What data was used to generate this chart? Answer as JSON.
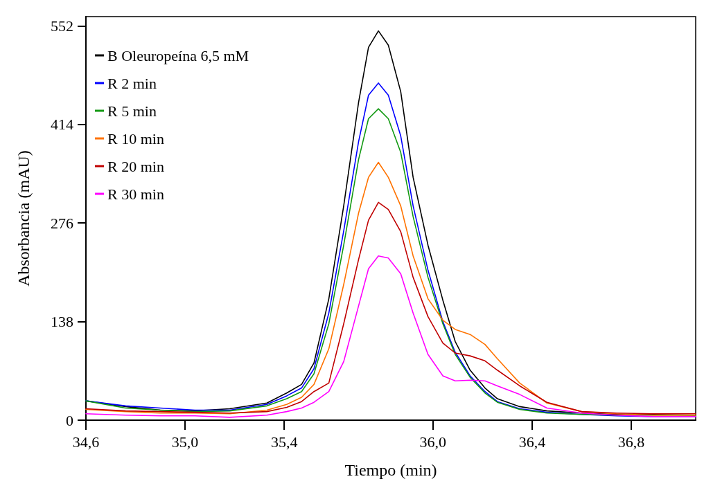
{
  "chart_data": {
    "type": "line",
    "xlabel": "Tiempo (min)",
    "ylabel": "Absorbancia (mAU)",
    "xlim": [
      34.6,
      37.06
    ],
    "ylim": [
      0,
      565
    ],
    "xticks": [
      {
        "value": 34.6,
        "label": "34,6"
      },
      {
        "value": 35.0,
        "label": "35,0"
      },
      {
        "value": 35.4,
        "label": "35,4"
      },
      {
        "value": 36.0,
        "label": "36,0"
      },
      {
        "value": 36.4,
        "label": "36,4"
      },
      {
        "value": 36.8,
        "label": "36,8"
      }
    ],
    "yticks": [
      0,
      138,
      276,
      414,
      552
    ],
    "grid": false,
    "legend": "top left",
    "marker": "none",
    "line_style": "solid",
    "x": [
      34.6,
      34.76,
      34.9,
      35.04,
      35.18,
      35.33,
      35.41,
      35.47,
      35.52,
      35.58,
      35.64,
      35.7,
      35.74,
      35.78,
      35.82,
      35.87,
      35.92,
      35.98,
      36.04,
      36.09,
      36.15,
      36.21,
      36.26,
      36.35,
      36.46,
      36.6,
      36.74,
      36.89,
      37.06
    ],
    "series": [
      {
        "name": "B Oleuropeína 6,5 mM",
        "color": "#000000",
        "values": [
          27,
          19,
          14,
          13,
          16,
          24,
          38,
          50,
          80,
          170,
          300,
          445,
          522,
          545,
          525,
          460,
          340,
          245,
          168,
          110,
          70,
          45,
          30,
          19,
          13,
          10,
          8,
          8,
          7
        ]
      },
      {
        "name": "R 2 min",
        "color": "#0000ff",
        "values": [
          27,
          20,
          17,
          14,
          14,
          22,
          34,
          45,
          72,
          150,
          265,
          390,
          455,
          472,
          455,
          398,
          300,
          210,
          138,
          95,
          62,
          40,
          26,
          16,
          11,
          8,
          6,
          5,
          5
        ]
      },
      {
        "name": "R 5 min",
        "color": "#129912",
        "values": [
          27,
          17,
          14,
          12,
          13,
          20,
          30,
          40,
          65,
          135,
          245,
          365,
          422,
          436,
          422,
          375,
          285,
          200,
          135,
          92,
          60,
          38,
          25,
          15,
          10,
          8,
          7,
          7,
          7
        ]
      },
      {
        "name": "R 10 min",
        "color": "#ff7300",
        "values": [
          15,
          12,
          10,
          10,
          9,
          14,
          22,
          32,
          50,
          100,
          190,
          290,
          340,
          361,
          340,
          300,
          230,
          170,
          140,
          127,
          120,
          106,
          86,
          52,
          24,
          12,
          9,
          7,
          7
        ]
      },
      {
        "name": "R 20 min",
        "color": "#c00000",
        "values": [
          16,
          13,
          12,
          11,
          10,
          12,
          18,
          26,
          40,
          52,
          135,
          225,
          280,
          305,
          295,
          264,
          200,
          145,
          108,
          94,
          90,
          83,
          70,
          48,
          25,
          12,
          10,
          9,
          9
        ]
      },
      {
        "name": "R 30 min",
        "color": "#ff00ff",
        "values": [
          9,
          7,
          6,
          6,
          4,
          7,
          12,
          17,
          25,
          40,
          82,
          160,
          212,
          230,
          227,
          205,
          150,
          92,
          62,
          55,
          56,
          55,
          48,
          36,
          17,
          10,
          7,
          5,
          5
        ]
      }
    ]
  }
}
